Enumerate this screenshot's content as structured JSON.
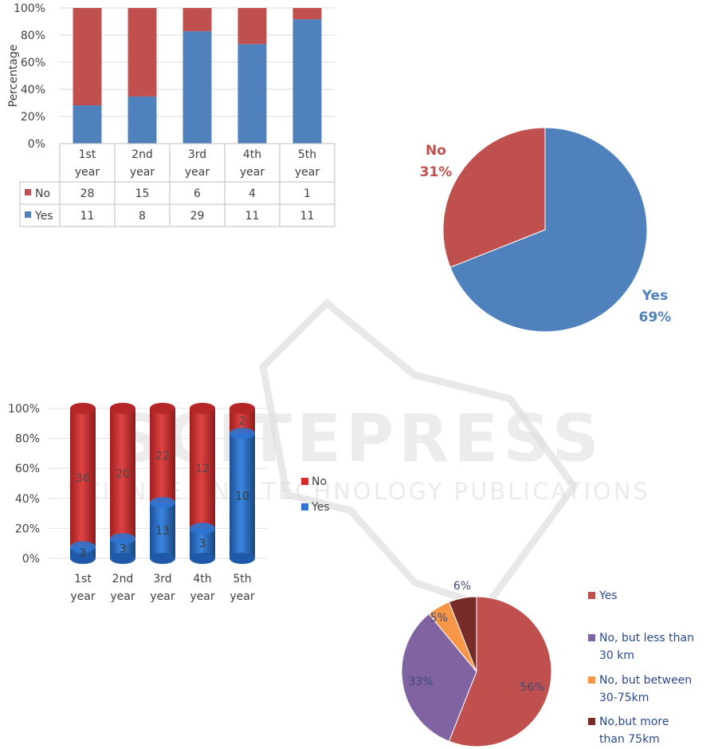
{
  "watermark": {
    "logo_text": "SCITEPRESS",
    "subtitle": "SCIENCE AND TECHNOLOGY PUBLICATIONS"
  },
  "colors": {
    "red": "#C0504D",
    "blue": "#4F81BD",
    "purple": "#8064A2",
    "orange": "#F79646",
    "darkred": "#772C2A",
    "cyl_red": "#D42B2B",
    "cyl_blue": "#2E74D0"
  },
  "chart_data": [
    {
      "type": "bar",
      "stacked": "percent",
      "ylabel": "Percentage",
      "yticks": [
        "0%",
        "20%",
        "40%",
        "60%",
        "80%",
        "100%"
      ],
      "categories": [
        "1st year",
        "2nd year",
        "3rd year",
        "4th year",
        "5th year"
      ],
      "category_lines": [
        [
          "1st",
          "year"
        ],
        [
          "2nd",
          "year"
        ],
        [
          "3rd",
          "year"
        ],
        [
          "4th",
          "year"
        ],
        [
          "5th",
          "year"
        ]
      ],
      "series": [
        {
          "name": "No",
          "values": [
            28,
            15,
            6,
            4,
            1
          ],
          "color": "#C0504D"
        },
        {
          "name": "Yes",
          "values": [
            11,
            8,
            29,
            11,
            11
          ],
          "color": "#4F81BD"
        }
      ],
      "data_table": true
    },
    {
      "type": "pie",
      "slices": [
        {
          "name": "Yes",
          "pct": 69,
          "label": "69%",
          "color": "#4F81BD"
        },
        {
          "name": "No",
          "pct": 31,
          "label": "31%",
          "color": "#C0504D"
        }
      ]
    },
    {
      "type": "bar",
      "stacked": "percent",
      "style": "3d-cylinder",
      "yticks": [
        "0%",
        "20%",
        "40%",
        "60%",
        "80%",
        "100%"
      ],
      "category_lines": [
        [
          "1st",
          "year"
        ],
        [
          "2nd",
          "year"
        ],
        [
          "3rd",
          "year"
        ],
        [
          "4th",
          "year"
        ],
        [
          "5th",
          "year"
        ]
      ],
      "series": [
        {
          "name": "No",
          "values": [
            36,
            20,
            22,
            12,
            2
          ],
          "color": "#D42B2B"
        },
        {
          "name": "Yes",
          "values": [
            3,
            3,
            13,
            3,
            10
          ],
          "color": "#2E74D0"
        }
      ],
      "legend": [
        "No",
        "Yes"
      ],
      "legend_position": "right"
    },
    {
      "type": "pie",
      "slices": [
        {
          "name": "Yes",
          "pct": 56,
          "label": "56%",
          "color": "#C0504D"
        },
        {
          "name": "No, but less than 30 km",
          "pct": 33,
          "label": "33%",
          "color": "#8064A2"
        },
        {
          "name": "No, but between 30-75km",
          "pct": 5,
          "label": "5%",
          "color": "#F79646"
        },
        {
          "name": "No,but more than 75km",
          "pct": 6,
          "label": "6%",
          "color": "#772C2A"
        }
      ],
      "legend_lines": [
        [
          "Yes"
        ],
        [
          "No, but less than",
          "30 km"
        ],
        [
          "No, but between",
          "30-75km"
        ],
        [
          "No,but more",
          "than 75km"
        ]
      ],
      "legend_position": "right"
    }
  ]
}
